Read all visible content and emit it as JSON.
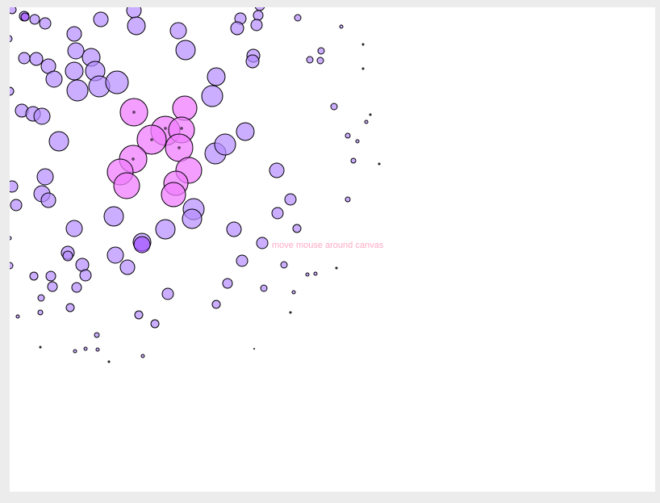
{
  "canvas": {
    "hint_text": "move mouse around canvas",
    "hint_color": "#ffaac4",
    "bubble_colors": {
      "default_fill": "#b58cff",
      "near_fill": "#f07dff",
      "hot_fill": "#a352ff",
      "stroke": "#000000"
    }
  }
}
